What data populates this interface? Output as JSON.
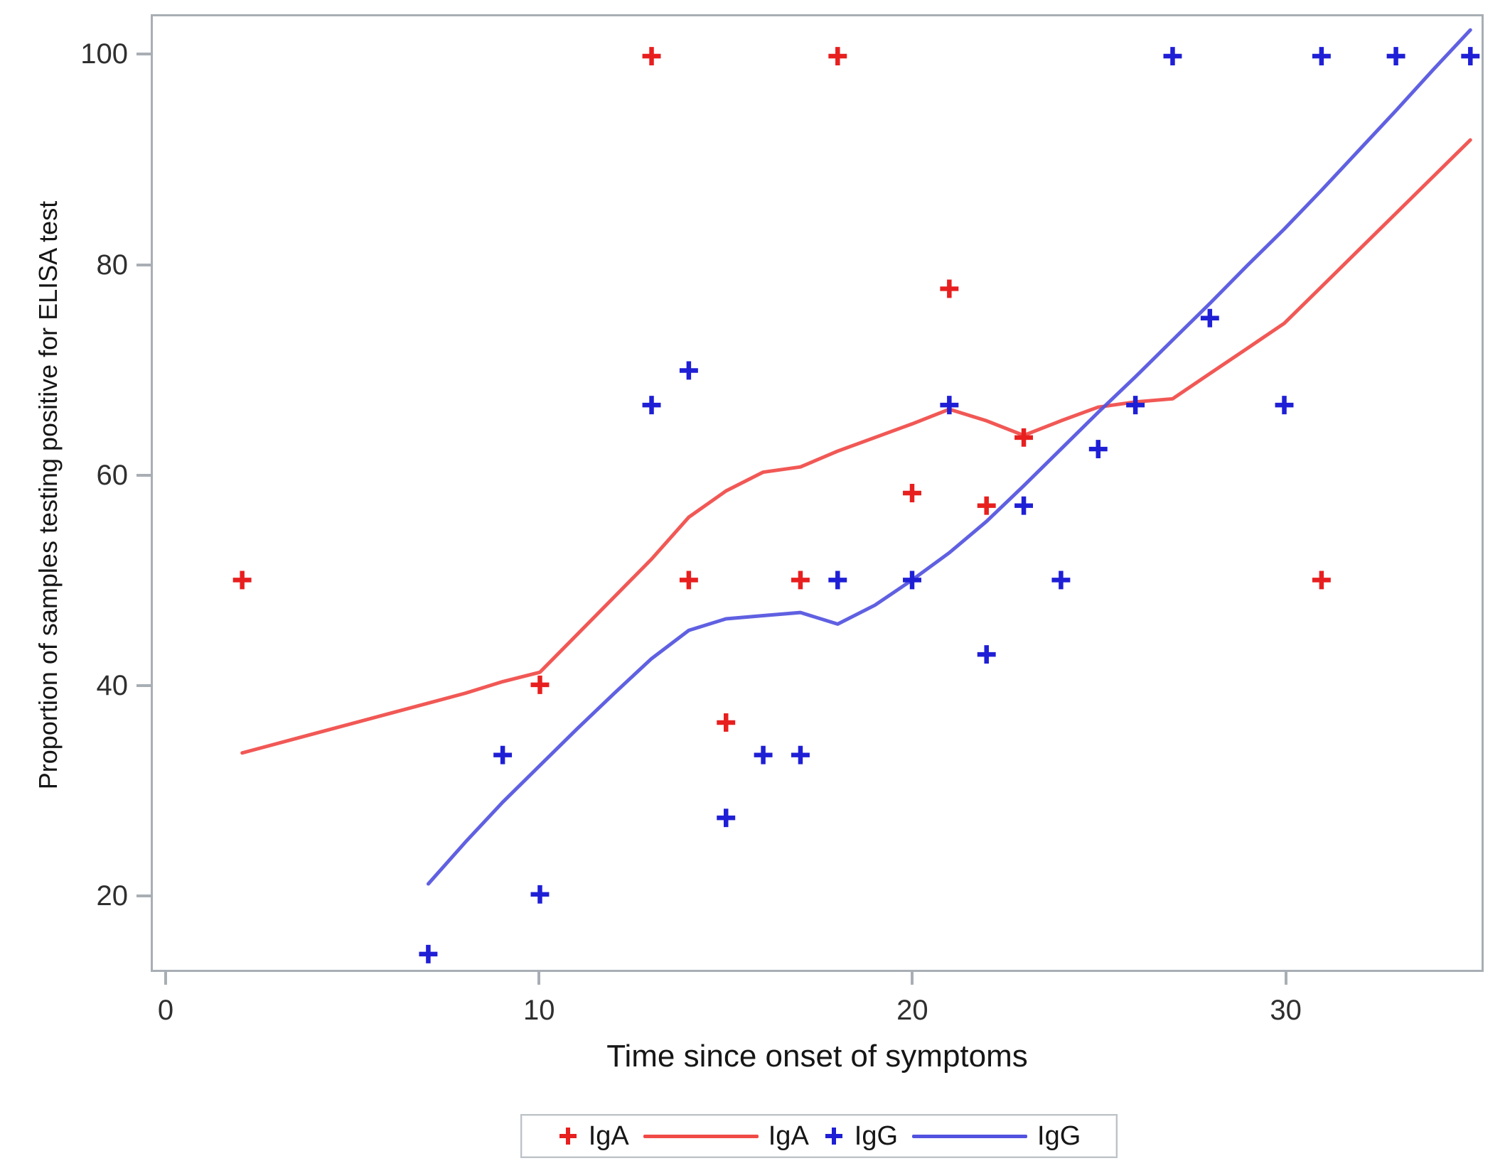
{
  "figure": {
    "x_axis_label": "Time since onset of symptoms",
    "y_axis_label": "Proportion of samples testing positive for ELISA test"
  },
  "colors": {
    "iga_marker": "#e81f1f",
    "iga_line": "#f04a46",
    "igg_marker": "#1f1fd6",
    "igg_line": "#5252e0",
    "frame": "#a8aeb4",
    "tick_label": "#2f2f2f"
  },
  "legend": {
    "items": [
      {
        "symbol": "plus",
        "label": "IgA",
        "color": "#e81f1f"
      },
      {
        "symbol": "line",
        "label": "IgA",
        "color": "#f04a46"
      },
      {
        "symbol": "plus",
        "label": "IgG",
        "color": "#1f1fd6"
      },
      {
        "symbol": "line",
        "label": "IgG",
        "color": "#5252e0"
      }
    ]
  },
  "chart_data": {
    "type": "scatter",
    "subtype": "scatter points with loess smooth lines",
    "title": "",
    "xlabel": "Time since onset of symptoms",
    "ylabel": "Proportion of samples testing positive for ELISA test",
    "xlim": [
      -0.4,
      35.3
    ],
    "ylim": [
      12.8,
      103.8
    ],
    "x_ticks": [
      0,
      10,
      20,
      30
    ],
    "y_ticks": [
      20,
      40,
      60,
      80,
      100
    ],
    "grid": false,
    "legend_position": "bottom-center",
    "series": [
      {
        "name": "IgA",
        "role": "scatter",
        "marker": "plus",
        "color": "#e81f1f",
        "points": [
          [
            2,
            50
          ],
          [
            10,
            40
          ],
          [
            13,
            100
          ],
          [
            14,
            50
          ],
          [
            15,
            36.4
          ],
          [
            17,
            50
          ],
          [
            18,
            100
          ],
          [
            20,
            58.3
          ],
          [
            21,
            77.8
          ],
          [
            22,
            57.1
          ],
          [
            23,
            63.6
          ],
          [
            31,
            50
          ]
        ]
      },
      {
        "name": "IgA",
        "role": "loess-line",
        "color": "#f04a46",
        "points": [
          [
            2,
            33.5
          ],
          [
            4,
            35.4
          ],
          [
            6,
            37.3
          ],
          [
            8,
            39.2
          ],
          [
            9,
            40.3
          ],
          [
            10,
            41.2
          ],
          [
            11,
            44.8
          ],
          [
            12,
            48.4
          ],
          [
            13,
            52
          ],
          [
            14,
            56
          ],
          [
            15,
            58.5
          ],
          [
            16,
            60.3
          ],
          [
            17,
            60.8
          ],
          [
            18,
            62.3
          ],
          [
            19,
            63.6
          ],
          [
            20,
            64.9
          ],
          [
            21,
            66.3
          ],
          [
            22,
            65.2
          ],
          [
            23,
            63.8
          ],
          [
            24,
            65.2
          ],
          [
            25,
            66.5
          ],
          [
            26,
            67
          ],
          [
            27,
            67.3
          ],
          [
            28,
            69.7
          ],
          [
            29,
            72.1
          ],
          [
            30,
            74.5
          ],
          [
            31,
            78
          ],
          [
            32,
            81.5
          ],
          [
            33,
            85
          ],
          [
            34,
            88.5
          ],
          [
            35,
            92
          ]
        ]
      },
      {
        "name": "IgG",
        "role": "scatter",
        "marker": "plus",
        "color": "#1f1fd6",
        "points": [
          [
            7,
            14.3
          ],
          [
            9,
            33.3
          ],
          [
            10,
            20
          ],
          [
            13,
            66.7
          ],
          [
            14,
            70
          ],
          [
            15,
            27.3
          ],
          [
            16,
            33.3
          ],
          [
            17,
            33.3
          ],
          [
            18,
            50
          ],
          [
            20,
            50
          ],
          [
            21,
            66.7
          ],
          [
            22,
            42.9
          ],
          [
            23,
            57.1
          ],
          [
            24,
            50
          ],
          [
            25,
            62.5
          ],
          [
            26,
            66.7
          ],
          [
            27,
            100
          ],
          [
            28,
            75
          ],
          [
            30,
            66.7
          ],
          [
            31,
            100
          ],
          [
            33,
            100
          ],
          [
            35,
            100
          ]
        ]
      },
      {
        "name": "IgG",
        "role": "loess-line",
        "color": "#5252e0",
        "points": [
          [
            7,
            21
          ],
          [
            8,
            25
          ],
          [
            9,
            28.8
          ],
          [
            10,
            32.3
          ],
          [
            11,
            35.8
          ],
          [
            12,
            39.2
          ],
          [
            13,
            42.5
          ],
          [
            14,
            45.2
          ],
          [
            15,
            46.3
          ],
          [
            16,
            46.6
          ],
          [
            17,
            46.9
          ],
          [
            18,
            45.8
          ],
          [
            19,
            47.6
          ],
          [
            20,
            50
          ],
          [
            21,
            52.6
          ],
          [
            22,
            55.6
          ],
          [
            23,
            59
          ],
          [
            24,
            62.5
          ],
          [
            25,
            66
          ],
          [
            26,
            69.4
          ],
          [
            27,
            72.9
          ],
          [
            28,
            76.4
          ],
          [
            29,
            80
          ],
          [
            30,
            83.5
          ],
          [
            31,
            87.2
          ],
          [
            32,
            91
          ],
          [
            33,
            94.8
          ],
          [
            34,
            98.7
          ],
          [
            35,
            102.5
          ]
        ]
      }
    ]
  }
}
